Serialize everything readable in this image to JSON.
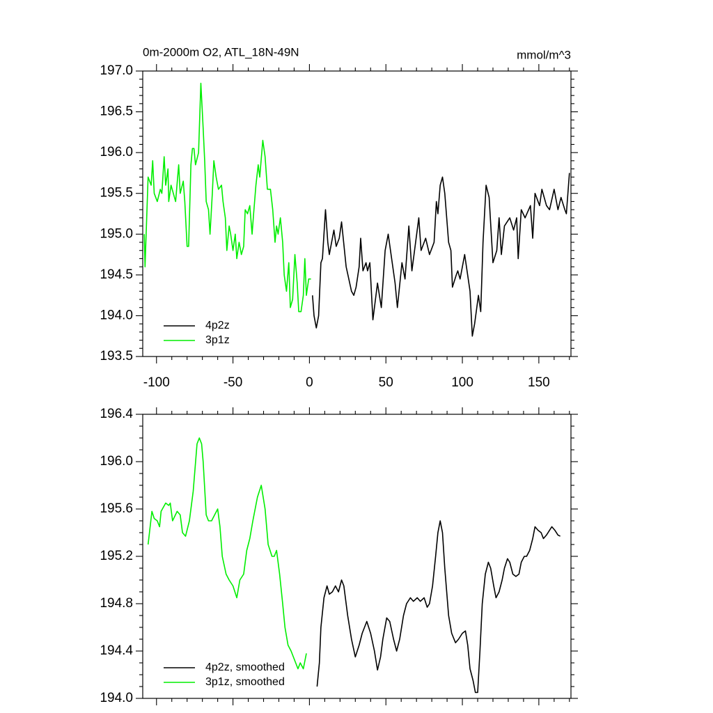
{
  "chart_data": [
    {
      "type": "line",
      "title": "0m-2000m O2, ATL_18N-49N",
      "right_title": "mmol/m^3",
      "xlim": [
        -109,
        171
      ],
      "xticks": [
        -100,
        -50,
        0,
        50,
        100,
        150
      ],
      "show_xtick_labels": true,
      "ylim": [
        193.5,
        197.0
      ],
      "yticks": [
        193.5,
        {
          "value": 194,
          "label": "194.0"
        },
        194.5,
        {
          "value": 195,
          "label": "195.0"
        },
        195.5,
        {
          "value": 196,
          "label": "196.0"
        },
        196.5,
        {
          "value": 197,
          "label": "197.0"
        }
      ],
      "legend": "lower left",
      "series": [
        {
          "name": "4p2z",
          "color": "#000000",
          "x": [
            2,
            3,
            4.5,
            6,
            7.5,
            8.5,
            10.5,
            12,
            13,
            16,
            17.5,
            19.5,
            21,
            24,
            27.5,
            29,
            30.5,
            32.5,
            33.5,
            35,
            37,
            38,
            39.5,
            41.5,
            44.5,
            47,
            49.5,
            51.5,
            53,
            56,
            57.5,
            60.5,
            62.5,
            65,
            67,
            71.5,
            73,
            76,
            78.5,
            81.5,
            83,
            84,
            85.5,
            87,
            88.5,
            91,
            92.5,
            93.5,
            96,
            97,
            98.5,
            101.5,
            105,
            106.5,
            108,
            110.5,
            112,
            113.5,
            115.5,
            117.5,
            120,
            122.5,
            124,
            125.5,
            127.5,
            131,
            133.5,
            135.5,
            136.5,
            138.5,
            141,
            144.5,
            146,
            147.5,
            150.5,
            152,
            155,
            157,
            160,
            162.5,
            164.5,
            167,
            168,
            170
          ],
          "values": [
            194.25,
            194.0,
            193.85,
            194.0,
            194.65,
            194.7,
            195.3,
            194.9,
            194.75,
            195.05,
            194.85,
            194.95,
            195.15,
            194.6,
            194.3,
            194.25,
            194.35,
            194.6,
            194.95,
            194.55,
            194.65,
            194.55,
            194.65,
            193.95,
            194.4,
            194.1,
            194.8,
            195.0,
            194.8,
            194.4,
            194.1,
            194.65,
            194.45,
            195.1,
            194.55,
            195.2,
            194.8,
            194.95,
            194.75,
            194.9,
            195.4,
            195.25,
            195.6,
            195.7,
            195.5,
            194.9,
            194.8,
            194.35,
            194.5,
            194.55,
            194.45,
            194.75,
            194.3,
            193.75,
            193.9,
            194.25,
            194.05,
            194.9,
            195.6,
            195.45,
            194.65,
            194.8,
            195.2,
            194.75,
            195.1,
            195.2,
            195.05,
            195.2,
            194.7,
            195.3,
            195.2,
            195.35,
            194.95,
            195.5,
            195.35,
            195.55,
            195.35,
            195.3,
            195.55,
            195.3,
            195.45,
            195.3,
            195.25,
            195.75
          ]
        },
        {
          "name": "3p1z",
          "color": "#00ee00",
          "x": [
            -108,
            -107.5,
            -105.5,
            -103.5,
            -102.5,
            -101.5,
            -99.5,
            -97.5,
            -96.5,
            -95,
            -94,
            -92.5,
            -92,
            -90.5,
            -87.5,
            -85.5,
            -84.5,
            -82.5,
            -81.5,
            -80,
            -79,
            -77.5,
            -76.5,
            -75.5,
            -74.5,
            -72.5,
            -71,
            -69.5,
            -68.5,
            -67.5,
            -66,
            -65,
            -63.5,
            -62.5,
            -61,
            -59.5,
            -57.5,
            -56.5,
            -55,
            -54,
            -52.5,
            -51.5,
            -50,
            -48.5,
            -47.5,
            -46,
            -44.5,
            -43,
            -42,
            -40.5,
            -39,
            -37.5,
            -36.5,
            -35,
            -33.5,
            -32.5,
            -30.5,
            -29,
            -27.5,
            -25.5,
            -24,
            -22.5,
            -21.5,
            -20.5,
            -19,
            -17.5,
            -16.5,
            -15,
            -13.5,
            -12.5,
            -11,
            -9.5,
            -8,
            -7,
            -5.5,
            -4,
            -3,
            -2,
            -0.5,
            1
          ],
          "values": [
            195.0,
            194.6,
            195.7,
            195.6,
            195.9,
            195.5,
            195.4,
            195.55,
            195.5,
            195.95,
            195.6,
            195.8,
            195.4,
            195.6,
            195.4,
            195.85,
            195.5,
            195.65,
            195.4,
            194.85,
            194.85,
            195.85,
            196.05,
            196.05,
            195.85,
            196.0,
            196.85,
            196.3,
            195.9,
            195.4,
            195.3,
            195.0,
            195.5,
            195.9,
            195.7,
            195.55,
            195.6,
            195.4,
            195.2,
            194.8,
            195.1,
            195.0,
            194.8,
            195.0,
            194.7,
            194.9,
            194.75,
            194.85,
            195.3,
            195.25,
            195.35,
            195.0,
            195.25,
            195.6,
            195.85,
            195.7,
            196.15,
            195.95,
            195.55,
            195.55,
            195.3,
            194.9,
            195.1,
            195.0,
            195.2,
            194.9,
            194.5,
            194.3,
            194.65,
            194.1,
            194.2,
            194.75,
            194.4,
            194.05,
            194.05,
            194.25,
            194.7,
            194.25,
            194.45,
            194.45
          ]
        }
      ]
    },
    {
      "type": "line",
      "xlim": [
        -109,
        171
      ],
      "xticks": [
        -100,
        -50,
        0,
        50,
        100,
        150
      ],
      "show_xtick_labels": false,
      "ylim": [
        194.0,
        196.4
      ],
      "yticks": [
        {
          "value": 194,
          "label": "194.0"
        },
        194.4,
        194.8,
        195.2,
        195.6,
        {
          "value": 196,
          "label": "196.0"
        },
        196.4
      ],
      "legend": "lower left",
      "series": [
        {
          "name": "4p2z, smoothed",
          "color": "#000000",
          "x": [
            5,
            6.5,
            7.5,
            9.5,
            11.5,
            13,
            15,
            17,
            19,
            21,
            22.5,
            25,
            27.5,
            30,
            32.5,
            34.5,
            37.5,
            40,
            42.5,
            44.5,
            46.5,
            48,
            50.5,
            52.5,
            55,
            57,
            59,
            61.5,
            63.5,
            66,
            68,
            70.5,
            72.5,
            75,
            77,
            78.5,
            80.5,
            82.5,
            84,
            85.5,
            87,
            88.5,
            91,
            93,
            95.5,
            97.5,
            100,
            102,
            103.5,
            105,
            107,
            108.5,
            110,
            111.5,
            113,
            115,
            117,
            118.5,
            120.5,
            122,
            124,
            126,
            127.5,
            129.5,
            131,
            133,
            135,
            137,
            138.5,
            140.5,
            142,
            144,
            146,
            147.5,
            149.5,
            151.5,
            153,
            155,
            157,
            158.5,
            160.5,
            162.5,
            164
          ],
          "values": [
            194.1,
            194.3,
            194.6,
            194.85,
            194.95,
            194.88,
            194.9,
            194.95,
            194.9,
            195.0,
            194.95,
            194.7,
            194.5,
            194.35,
            194.45,
            194.55,
            194.65,
            194.55,
            194.4,
            194.24,
            194.35,
            194.5,
            194.68,
            194.65,
            194.5,
            194.4,
            194.5,
            194.7,
            194.8,
            194.85,
            194.82,
            194.85,
            194.82,
            194.85,
            194.77,
            194.8,
            194.95,
            195.2,
            195.4,
            195.5,
            195.4,
            195.1,
            194.7,
            194.55,
            194.47,
            194.5,
            194.55,
            194.57,
            194.45,
            194.25,
            194.15,
            194.05,
            194.05,
            194.4,
            194.8,
            195.05,
            195.15,
            195.1,
            194.95,
            194.85,
            194.9,
            195.0,
            195.1,
            195.18,
            195.15,
            195.05,
            195.03,
            195.05,
            195.15,
            195.2,
            195.2,
            195.25,
            195.35,
            195.45,
            195.42,
            195.4,
            195.35,
            195.38,
            195.42,
            195.45,
            195.42,
            195.38,
            195.37
          ]
        },
        {
          "name": "3p1z, smoothed",
          "color": "#00ee00",
          "x": [
            -105.5,
            -103,
            -101.5,
            -99.5,
            -98,
            -97,
            -94,
            -92,
            -91,
            -89.5,
            -86.5,
            -84.5,
            -83,
            -81,
            -78.5,
            -76,
            -73.5,
            -72,
            -70.5,
            -69.5,
            -67.5,
            -66,
            -64,
            -62,
            -60,
            -58.5,
            -57,
            -54.5,
            -52.5,
            -50,
            -47.5,
            -45.5,
            -43,
            -41,
            -39,
            -37,
            -34,
            -31.5,
            -29,
            -27,
            -24.5,
            -23,
            -21.5,
            -19.5,
            -17.5,
            -16,
            -14,
            -12,
            -10.5,
            -9,
            -7.5,
            -6,
            -4,
            -2
          ],
          "values": [
            195.3,
            195.58,
            195.52,
            195.5,
            195.45,
            195.58,
            195.65,
            195.63,
            195.65,
            195.5,
            195.58,
            195.55,
            195.4,
            195.37,
            195.5,
            195.75,
            196.15,
            196.2,
            196.15,
            196.0,
            195.55,
            195.5,
            195.5,
            195.55,
            195.6,
            195.45,
            195.2,
            195.05,
            195.0,
            194.95,
            194.85,
            195.0,
            195.05,
            195.25,
            195.35,
            195.5,
            195.7,
            195.8,
            195.6,
            195.3,
            195.2,
            195.2,
            195.25,
            195.05,
            194.8,
            194.6,
            194.45,
            194.4,
            194.35,
            194.3,
            194.25,
            194.3,
            194.25,
            194.38
          ]
        }
      ]
    }
  ]
}
